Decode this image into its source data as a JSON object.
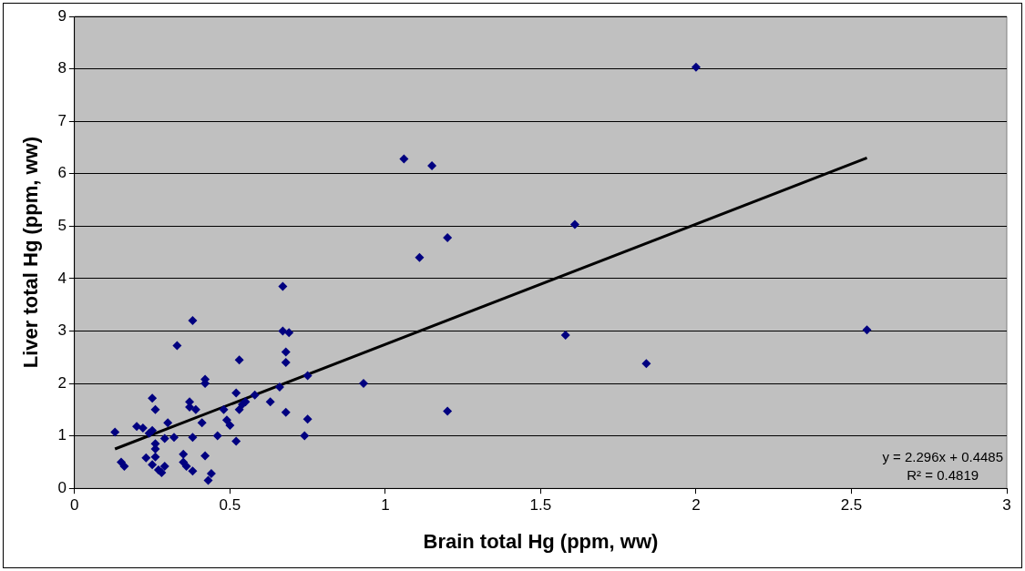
{
  "chart_data": {
    "type": "scatter",
    "xlabel": "Brain total Hg (ppm, ww)",
    "ylabel": "Liver total Hg (ppm, ww)",
    "xlim": [
      0,
      3
    ],
    "xticks": [
      0,
      0.5,
      1,
      1.5,
      2,
      2.5,
      3
    ],
    "ylim": [
      0,
      9
    ],
    "yticks": [
      0,
      1,
      2,
      3,
      4,
      5,
      6,
      7,
      8,
      9
    ],
    "grid": "y",
    "legend": false,
    "annotations": [
      "y = 2.296x + 0.4485",
      "R² = 0.4819"
    ],
    "series": [
      {
        "color": "#000080",
        "marker": "diamond",
        "x": [
          0.13,
          0.15,
          0.16,
          0.2,
          0.22,
          0.24,
          0.23,
          0.25,
          0.26,
          0.25,
          0.26,
          0.26,
          0.26,
          0.25,
          0.27,
          0.28,
          0.29,
          0.29,
          0.3,
          0.32,
          0.33,
          0.35,
          0.35,
          0.36,
          0.37,
          0.37,
          0.38,
          0.38,
          0.38,
          0.39,
          0.41,
          0.42,
          0.42,
          0.42,
          0.43,
          0.44,
          0.46,
          0.48,
          0.49,
          0.5,
          0.52,
          0.52,
          0.53,
          0.53,
          0.54,
          0.55,
          0.58,
          0.63,
          0.66,
          0.67,
          0.67,
          0.68,
          0.68,
          0.69,
          0.68,
          0.74,
          0.75,
          0.75,
          0.93,
          1.06,
          1.11,
          1.15,
          1.2,
          1.2,
          1.58,
          1.61,
          1.84,
          2.0,
          2.55
        ],
        "values": [
          1.07,
          0.5,
          0.42,
          1.18,
          1.15,
          1.05,
          0.58,
          1.72,
          1.5,
          1.1,
          0.85,
          0.75,
          0.6,
          0.45,
          0.35,
          0.3,
          0.42,
          0.95,
          1.25,
          0.97,
          2.72,
          0.5,
          0.65,
          0.42,
          1.65,
          1.55,
          3.2,
          0.97,
          0.33,
          1.5,
          1.25,
          2.0,
          2.08,
          0.62,
          0.15,
          0.28,
          1.0,
          1.5,
          1.3,
          1.2,
          1.82,
          0.9,
          1.5,
          2.45,
          1.6,
          1.65,
          1.78,
          1.65,
          1.93,
          3.85,
          3.0,
          2.6,
          2.4,
          2.97,
          1.45,
          1.0,
          2.15,
          1.32,
          2.0,
          6.28,
          4.4,
          6.15,
          4.78,
          1.47,
          2.92,
          5.03,
          2.38,
          8.03,
          3.02
        ]
      },
      {
        "type": "line",
        "color": "#000000",
        "x": [
          0.13,
          2.55
        ],
        "values": [
          0.75,
          6.3
        ],
        "marker": "none"
      }
    ]
  }
}
